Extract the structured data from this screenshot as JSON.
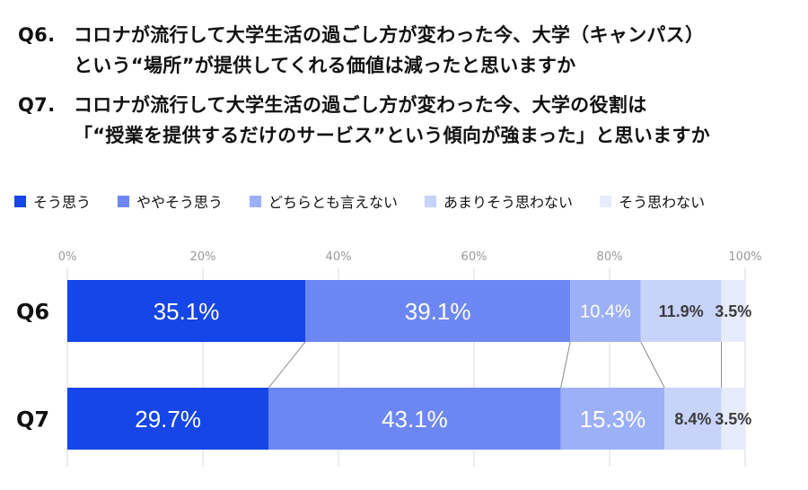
{
  "questions": [
    {
      "num": "Q6.",
      "text": "コロナが流行して大学生活の過ごし方が変わった今、大学（キャンパス）\nという“場所”が提供してくれる価値は減ったと思いますか"
    },
    {
      "num": "Q7.",
      "text": "コロナが流行して大学生活の過ごし方が変わった今、大学の役割は\n「“授業を提供するだけのサービス”という傾向が強まった」と思いますか"
    }
  ],
  "colors": [
    "#1646e8",
    "#6c87f4",
    "#9cb0f7",
    "#c8d3fa",
    "#e6ebfd"
  ],
  "chart_data": {
    "type": "bar",
    "stacked": true,
    "orientation": "horizontal",
    "categories": [
      "Q6",
      "Q7"
    ],
    "series": [
      {
        "name": "そう思う",
        "values": [
          35.1,
          29.7
        ]
      },
      {
        "name": "ややそう思う",
        "values": [
          39.1,
          43.1
        ]
      },
      {
        "name": "どちらとも言えない",
        "values": [
          10.4,
          15.3
        ]
      },
      {
        "name": "あまりそう思わない",
        "values": [
          11.9,
          8.4
        ]
      },
      {
        "name": "そう思わない",
        "values": [
          3.5,
          3.5
        ]
      }
    ],
    "xlim": [
      0,
      100
    ],
    "xticks": [
      "0%",
      "20%",
      "40%",
      "60%",
      "80%",
      "100%"
    ],
    "value_suffix": "%",
    "legend_position": "top",
    "grid": true
  }
}
